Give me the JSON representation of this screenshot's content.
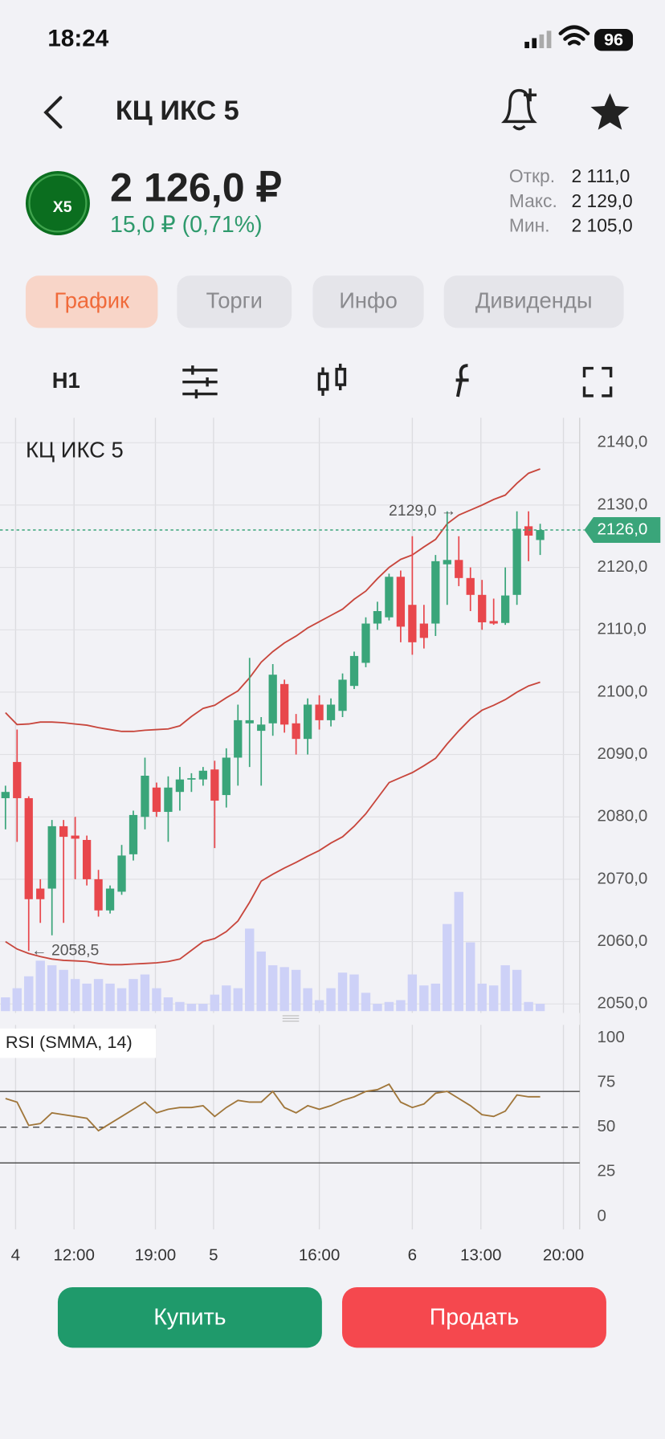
{
  "status": {
    "time": "18:24",
    "battery": "96"
  },
  "header": {
    "title": "КЦ ИКС 5"
  },
  "logo": "X5",
  "quote": {
    "price": "2 126,0 ₽",
    "change": "15,0 ₽ (0,71%)"
  },
  "stats": [
    {
      "label": "Откр.",
      "value": "2 111,0"
    },
    {
      "label": "Макс.",
      "value": "2 129,0"
    },
    {
      "label": "Мин.",
      "value": "2 105,0"
    }
  ],
  "tabs": [
    "График",
    "Торги",
    "Инфо",
    "Дивиденды"
  ],
  "toolbar": {
    "interval": "H1"
  },
  "chart_data": [
    {
      "type": "candlestick",
      "title": "КЦ ИКС 5",
      "up_color": "#3aa57a",
      "down_color": "#e8474c",
      "volume_color": "#cdd1f7",
      "band_color": "#c8463c",
      "open": [
        2083,
        2088.8,
        2083,
        2068.5,
        2068.5,
        2078.5,
        2077,
        2076.3,
        2070,
        2065,
        2068,
        2074,
        2080,
        2084.7,
        2080.8,
        2084,
        2086,
        2086,
        2087.6,
        2083.5,
        2089.5,
        2095,
        2093.8,
        2095,
        2101.3,
        2095,
        2092.5,
        2098,
        2095.5,
        2097,
        2101,
        2104.7,
        2111,
        2112,
        2118.5,
        2114,
        2111,
        2111,
        2120.5,
        2121.2,
        2118.3,
        2115.6,
        2111.4,
        2111.1,
        2115.6,
        2126.6,
        2124.4
      ],
      "high": [
        2085,
        2094,
        2083.3,
        2070,
        2079.5,
        2079.5,
        2080,
        2077,
        2071.5,
        2069,
        2075.5,
        2081,
        2089.5,
        2085.5,
        2086.5,
        2088,
        2087,
        2088,
        2089,
        2091,
        2098,
        2105.5,
        2096,
        2104.5,
        2102,
        2096.5,
        2099,
        2099.5,
        2099,
        2103,
        2106.5,
        2112,
        2114.5,
        2119,
        2119.5,
        2125,
        2114,
        2122,
        2129,
        2125,
        2120,
        2118,
        2115,
        2120,
        2129,
        2129,
        2127
      ],
      "low": [
        2078,
        2076,
        2058.5,
        2063,
        2061,
        2063,
        2070,
        2069,
        2064,
        2064.5,
        2067.5,
        2073,
        2078,
        2080,
        2076,
        2081,
        2084,
        2085,
        2075,
        2081.5,
        2085,
        2088,
        2085,
        2093,
        2093.5,
        2090,
        2090,
        2094,
        2094.5,
        2096,
        2100.5,
        2104,
        2110,
        2111.5,
        2108,
        2106,
        2107,
        2109,
        2114,
        2117,
        2113,
        2110,
        2110.8,
        2110.8,
        2114,
        2121,
        2122
      ],
      "close": [
        2084,
        2083,
        2066.8,
        2066.8,
        2078.5,
        2076.8,
        2076.5,
        2070,
        2065,
        2068.5,
        2073.8,
        2080.3,
        2086.6,
        2080.8,
        2084.7,
        2086,
        2086.2,
        2087.4,
        2082.6,
        2089.5,
        2095.5,
        2095.5,
        2094.8,
        2102.8,
        2094.8,
        2092.5,
        2098,
        2095.5,
        2098,
        2102,
        2105.8,
        2111,
        2113,
        2118.5,
        2110.5,
        2108,
        2108.7,
        2121,
        2121.2,
        2118.3,
        2115.6,
        2111.2,
        2111,
        2115.5,
        2126.2,
        2125.1,
        2126
      ],
      "volume": [
        15,
        25,
        38,
        55,
        50,
        45,
        35,
        30,
        35,
        30,
        25,
        35,
        40,
        25,
        15,
        10,
        8,
        8,
        18,
        28,
        25,
        90,
        65,
        50,
        48,
        45,
        25,
        12,
        25,
        42,
        40,
        20,
        8,
        10,
        12,
        40,
        28,
        30,
        95,
        130,
        75,
        30,
        28,
        50,
        45,
        10,
        8
      ],
      "upper": [
        2096.7,
        2094.8,
        2094.9,
        2095.2,
        2095.2,
        2095.1,
        2094.9,
        2094.7,
        2094.3,
        2094.0,
        2093.7,
        2093.7,
        2093.9,
        2094.0,
        2094.1,
        2094.6,
        2096.1,
        2097.4,
        2097.9,
        2099.1,
        2100.2,
        2102.3,
        2104.8,
        2106.5,
        2107.9,
        2109.0,
        2110.3,
        2111.3,
        2112.3,
        2113.3,
        2114.9,
        2116.2,
        2118.2,
        2120.0,
        2121.3,
        2122.0,
        2123.3,
        2124.5,
        2127.0,
        2128.4,
        2129.2,
        2130.0,
        2130.9,
        2131.6,
        2133.5,
        2135.1,
        2135.8
      ],
      "lower": [
        2060.0,
        2058.8,
        2058.1,
        2057.6,
        2057.2,
        2057.0,
        2056.9,
        2056.8,
        2056.5,
        2056.3,
        2056.3,
        2056.4,
        2056.5,
        2056.6,
        2056.8,
        2057.2,
        2058.6,
        2060.0,
        2060.5,
        2061.6,
        2063.3,
        2066.3,
        2069.7,
        2070.8,
        2071.8,
        2072.7,
        2073.7,
        2074.6,
        2075.8,
        2076.8,
        2078.5,
        2080.5,
        2083.0,
        2085.5,
        2086.3,
        2087.1,
        2088.2,
        2089.4,
        2091.7,
        2093.8,
        2095.7,
        2097.1,
        2097.9,
        2098.8,
        2100.0,
        2101.0,
        2101.6
      ],
      "ylim": [
        2048.7,
        2144
      ],
      "yticks": [
        {
          "value": 2050,
          "label": "2050,0"
        },
        {
          "value": 2060,
          "label": "2060,0"
        },
        {
          "value": 2070,
          "label": "2070,0"
        },
        {
          "value": 2080,
          "label": "2080,0"
        },
        {
          "value": 2090,
          "label": "2090,0"
        },
        {
          "value": 2100,
          "label": "2100,0"
        },
        {
          "value": 2110,
          "label": "2110,0"
        },
        {
          "value": 2120,
          "label": "2120,0"
        },
        {
          "value": 2130,
          "label": "2130,0"
        },
        {
          "value": 2140,
          "label": "2140,0"
        }
      ],
      "xlim": [
        -0.47,
        49.4
      ],
      "xticks": [
        {
          "value": 0.87,
          "label": "4"
        },
        {
          "value": 5.9,
          "label": "12:00"
        },
        {
          "value": 12.9,
          "label": "19:00"
        },
        {
          "value": 17.9,
          "label": "5"
        },
        {
          "value": 27,
          "label": "16:00"
        },
        {
          "value": 35,
          "label": "6"
        },
        {
          "value": 40.9,
          "label": "13:00"
        },
        {
          "value": 48,
          "label": "20:00"
        }
      ],
      "last": {
        "value": 2126,
        "label": "2126,0"
      },
      "annotations": [
        {
          "value": 2129,
          "label": "2129,0 →"
        },
        {
          "value": 2058.5,
          "label": "← 2058,5"
        }
      ],
      "grid": true
    },
    {
      "type": "line",
      "title": "RSI (SMMA, 14)",
      "color": "#a0763a",
      "values": [
        66,
        64,
        51,
        52,
        58,
        57,
        56,
        55,
        48,
        52,
        56,
        60,
        64,
        58,
        60,
        61,
        61,
        62,
        56,
        61,
        65,
        64,
        64,
        70,
        61,
        58,
        62,
        60,
        62,
        65,
        67,
        70,
        71,
        74,
        64,
        61,
        63,
        69,
        70,
        66,
        62,
        57,
        56,
        59,
        68,
        67,
        67
      ],
      "ylim": [
        -7.2,
        106.7
      ],
      "yticks": [
        0,
        25,
        50,
        75,
        100
      ],
      "levels": [
        30,
        50,
        70
      ]
    }
  ],
  "buttons": {
    "buy": "Купить",
    "sell": "Продать"
  }
}
